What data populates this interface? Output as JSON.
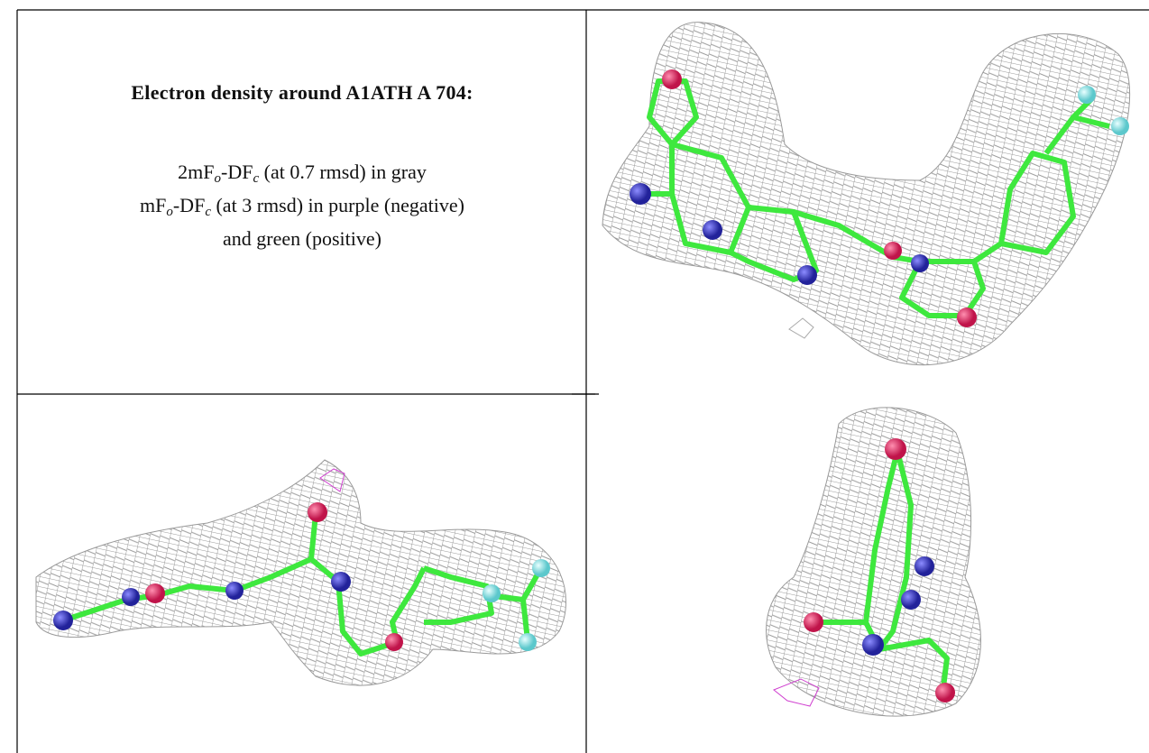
{
  "panel": {
    "title": "Electron density around A1ATH A 704:",
    "lines": [
      [
        "2mF",
        "o",
        "-DF",
        "c",
        " (at 0.7 rmsd) in gray"
      ],
      [
        "mF",
        "o",
        "-DF",
        "c",
        " (at 3 rmsd) in purple (negative)"
      ],
      [
        "and green (positive)"
      ]
    ]
  }
}
